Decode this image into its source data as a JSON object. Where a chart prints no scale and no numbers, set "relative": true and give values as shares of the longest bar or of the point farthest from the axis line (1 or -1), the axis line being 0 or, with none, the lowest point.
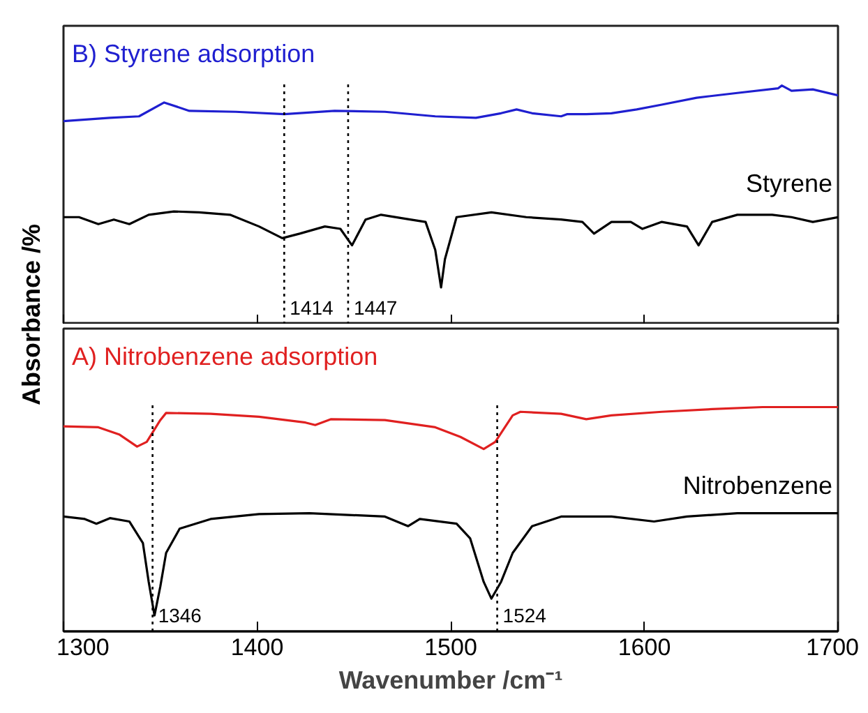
{
  "chart_data": [
    {
      "type": "line",
      "relative": true,
      "ylabel": "Absorbance /%",
      "xlim": [
        1300,
        1700
      ],
      "xticks": [
        1300,
        1400,
        1500,
        1600,
        1700
      ],
      "tick_labels": false,
      "grid": false,
      "line_style": "solid",
      "series": [
        {
          "name": "B) Styrene adsorption",
          "color": "#1f1fd0",
          "x": [
            1300,
            1324,
            1339,
            1352,
            1365,
            1389,
            1414,
            1440,
            1466,
            1492,
            1513,
            1526,
            1534,
            1542,
            1557,
            1560,
            1570,
            1583,
            1596,
            1609,
            1627,
            1648,
            1669,
            1671,
            1676,
            1687,
            1700
          ],
          "values": [
            0.851,
            0.865,
            0.871,
            0.929,
            0.894,
            0.89,
            0.88,
            0.894,
            0.89,
            0.871,
            0.865,
            0.884,
            0.9,
            0.884,
            0.871,
            0.88,
            0.88,
            0.884,
            0.9,
            0.92,
            0.949,
            0.969,
            0.988,
            1.0,
            0.978,
            0.984,
            0.959
          ]
        },
        {
          "name": "Styrene",
          "color": "#000000",
          "x": [
            1300,
            1308,
            1318,
            1326,
            1334,
            1344,
            1357,
            1370,
            1386,
            1401,
            1413,
            1422,
            1435,
            1443,
            1449,
            1456,
            1464,
            1479,
            1487,
            1492,
            1495,
            1497,
            1503,
            1521,
            1539,
            1557,
            1568,
            1574,
            1583,
            1593,
            1599,
            1609,
            1622,
            1628,
            1635,
            1648,
            1666,
            1676,
            1687,
            1700
          ],
          "values": [
            0.449,
            0.449,
            0.42,
            0.439,
            0.42,
            0.459,
            0.473,
            0.469,
            0.459,
            0.41,
            0.361,
            0.38,
            0.41,
            0.4,
            0.331,
            0.439,
            0.459,
            0.439,
            0.429,
            0.312,
            0.155,
            0.273,
            0.449,
            0.469,
            0.449,
            0.439,
            0.429,
            0.38,
            0.429,
            0.429,
            0.4,
            0.429,
            0.41,
            0.331,
            0.429,
            0.459,
            0.459,
            0.449,
            0.429,
            0.449
          ]
        }
      ],
      "ref_lines": [
        {
          "axis": "x",
          "value": 1414,
          "label": "1414",
          "line_style": "dotted",
          "color": "#000000"
        },
        {
          "axis": "x",
          "value": 1447,
          "label": "1447",
          "line_style": "dotted",
          "color": "#000000"
        }
      ]
    },
    {
      "type": "line",
      "relative": true,
      "xlabel": "Wavenumber /cm⁻¹",
      "xlim": [
        1300,
        1700
      ],
      "xticks": [
        1300,
        1400,
        1500,
        1600,
        1700
      ],
      "tick_labels": "x",
      "grid": false,
      "line_style": "solid",
      "series": [
        {
          "name": "A) Nitrobenzene adsorption",
          "color": "#e02020",
          "x": [
            1300,
            1318,
            1329,
            1338,
            1343,
            1350,
            1353,
            1376,
            1401,
            1425,
            1430,
            1438,
            1466,
            1492,
            1505,
            1517,
            1523,
            1532,
            1536,
            1557,
            1570,
            1583,
            1609,
            1635,
            1661,
            1700
          ],
          "values": [
            0.914,
            0.91,
            0.877,
            0.824,
            0.845,
            0.942,
            0.974,
            0.97,
            0.957,
            0.931,
            0.92,
            0.946,
            0.942,
            0.91,
            0.867,
            0.813,
            0.845,
            0.963,
            0.979,
            0.97,
            0.946,
            0.963,
            0.979,
            0.991,
            1.0,
            1.0
          ]
        },
        {
          "name": "Nitrobenzene",
          "color": "#000000",
          "x": [
            1300,
            1311,
            1317,
            1324,
            1334,
            1341,
            1344,
            1347,
            1350,
            1353,
            1360,
            1376,
            1401,
            1427,
            1466,
            1478,
            1484,
            1503,
            1510,
            1517,
            1521,
            1526,
            1532,
            1542,
            1557,
            1583,
            1605,
            1622,
            1648,
            1700
          ],
          "values": [
            0.512,
            0.501,
            0.48,
            0.505,
            0.49,
            0.394,
            0.221,
            0.071,
            0.2,
            0.35,
            0.458,
            0.501,
            0.523,
            0.527,
            0.512,
            0.469,
            0.501,
            0.48,
            0.415,
            0.221,
            0.146,
            0.221,
            0.35,
            0.469,
            0.512,
            0.512,
            0.49,
            0.512,
            0.527,
            0.527
          ]
        }
      ],
      "ref_lines": [
        {
          "axis": "x",
          "value": 1346,
          "label": "1346",
          "line_style": "dotted",
          "color": "#000000"
        },
        {
          "axis": "x",
          "value": 1524,
          "label": "1524",
          "line_style": "dotted",
          "color": "#000000"
        }
      ]
    }
  ]
}
